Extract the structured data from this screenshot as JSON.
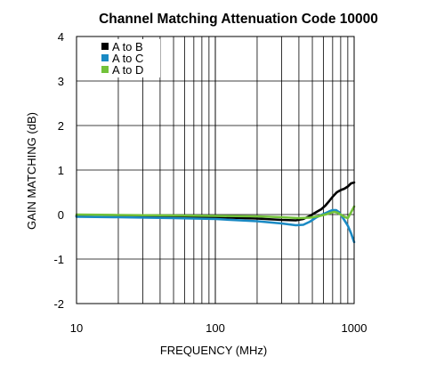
{
  "chart_data": {
    "type": "line",
    "title": "Channel Matching Attenuation Code 10000",
    "xlabel": "FREQUENCY (MHz)",
    "ylabel": "GAIN MATCHING (dB)",
    "x_scale": "log",
    "xlim": [
      10,
      1000
    ],
    "ylim": [
      -2,
      4
    ],
    "x_ticks": [
      10,
      100,
      1000
    ],
    "x_tick_labels": [
      "10",
      "100",
      "1000"
    ],
    "y_ticks": [
      -2,
      -1,
      0,
      1,
      2,
      3,
      4
    ],
    "y_tick_labels": [
      "-2",
      "-1",
      "0",
      "1",
      "2",
      "3",
      "4"
    ],
    "grid": true,
    "legend_position": "top-left",
    "series": [
      {
        "name": "A to B",
        "color": "#000000",
        "x": [
          10,
          20,
          50,
          100,
          200,
          300,
          380,
          430,
          480,
          530,
          580,
          620,
          660,
          700,
          750,
          800,
          850,
          900,
          950,
          1000
        ],
        "y": [
          -0.03,
          -0.04,
          -0.05,
          -0.06,
          -0.09,
          -0.12,
          -0.13,
          -0.1,
          -0.03,
          0.05,
          0.12,
          0.2,
          0.3,
          0.4,
          0.5,
          0.55,
          0.58,
          0.63,
          0.7,
          0.72
        ]
      },
      {
        "name": "A to C",
        "color": "#1a8ac4",
        "x": [
          10,
          20,
          50,
          100,
          200,
          300,
          380,
          430,
          480,
          530,
          580,
          620,
          660,
          700,
          740,
          780,
          820,
          860,
          900,
          950,
          1000
        ],
        "y": [
          -0.05,
          -0.06,
          -0.08,
          -0.1,
          -0.15,
          -0.2,
          -0.24,
          -0.23,
          -0.16,
          -0.07,
          -0.01,
          0.03,
          0.07,
          0.1,
          0.1,
          0.05,
          -0.05,
          -0.15,
          -0.25,
          -0.42,
          -0.62
        ]
      },
      {
        "name": "A to D",
        "color": "#72c23a",
        "x": [
          10,
          20,
          50,
          100,
          200,
          300,
          400,
          480,
          550,
          620,
          680,
          720,
          760,
          800,
          850,
          900,
          950,
          1000
        ],
        "y": [
          0.0,
          -0.01,
          -0.02,
          -0.03,
          -0.04,
          -0.06,
          -0.08,
          -0.07,
          -0.04,
          0.0,
          0.04,
          0.06,
          0.04,
          0.0,
          -0.05,
          -0.08,
          0.05,
          0.18
        ]
      }
    ]
  }
}
